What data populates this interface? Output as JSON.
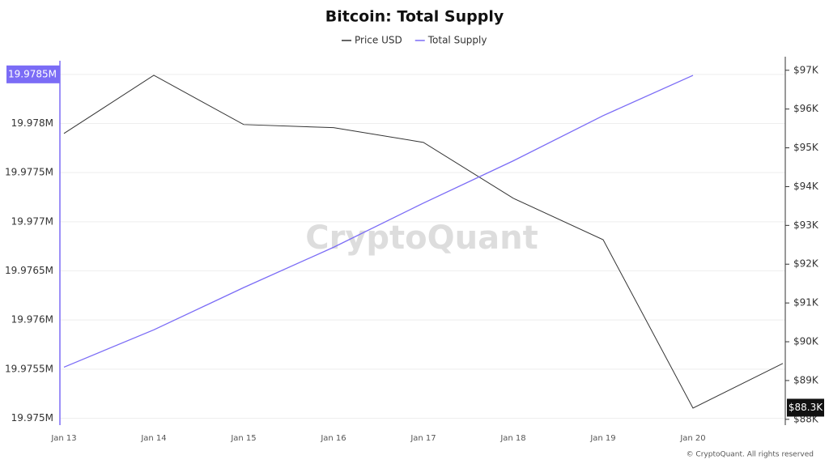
{
  "chart_data": {
    "type": "line",
    "title": "Bitcoin: Total Supply",
    "categories": [
      "Jan 13",
      "Jan 14",
      "Jan 15",
      "Jan 16",
      "Jan 17",
      "Jan 18",
      "Jan 19",
      "Jan 20",
      null
    ],
    "series": [
      {
        "name": "Price USD",
        "color": "#333333",
        "axis": "y2",
        "values": [
          95370,
          96870,
          95600,
          95520,
          95140,
          93700,
          92630,
          88290,
          89440
        ]
      },
      {
        "name": "Total Supply",
        "color": "#7b6cf6",
        "values": [
          19975520,
          19975900,
          19976330,
          19976740,
          19977190,
          19977620,
          19978080,
          19978490,
          null
        ]
      }
    ],
    "ylim": [
      19974930,
      19978680
    ],
    "yticks": [
      {
        "value": 19975000,
        "label": "19.975M"
      },
      {
        "value": 19975500,
        "label": "19.9755M"
      },
      {
        "value": 19976000,
        "label": "19.976M"
      },
      {
        "value": 19976500,
        "label": "19.9765M"
      },
      {
        "value": 19977000,
        "label": "19.977M"
      },
      {
        "value": 19977500,
        "label": "19.9775M"
      },
      {
        "value": 19978000,
        "label": "19.978M"
      },
      {
        "value": 19978500,
        "label": "19.9785M"
      }
    ],
    "y2lim": [
      87850,
      97350
    ],
    "y2ticks": [
      {
        "value": 88000,
        "label": "$88K"
      },
      {
        "value": 89000,
        "label": "$89K"
      },
      {
        "value": 90000,
        "label": "$90K"
      },
      {
        "value": 91000,
        "label": "$91K"
      },
      {
        "value": 92000,
        "label": "$92K"
      },
      {
        "value": 93000,
        "label": "$93K"
      },
      {
        "value": 94000,
        "label": "$94K"
      },
      {
        "value": 95000,
        "label": "$95K"
      },
      {
        "value": 96000,
        "label": "$96K"
      },
      {
        "value": 97000,
        "label": "$97K"
      }
    ],
    "current_price": {
      "value": 88300,
      "label": "$88.3K"
    },
    "grid": true,
    "legend": "top",
    "watermark": "CryptoQuant",
    "credit": "© CryptoQuant. All rights reserved"
  }
}
